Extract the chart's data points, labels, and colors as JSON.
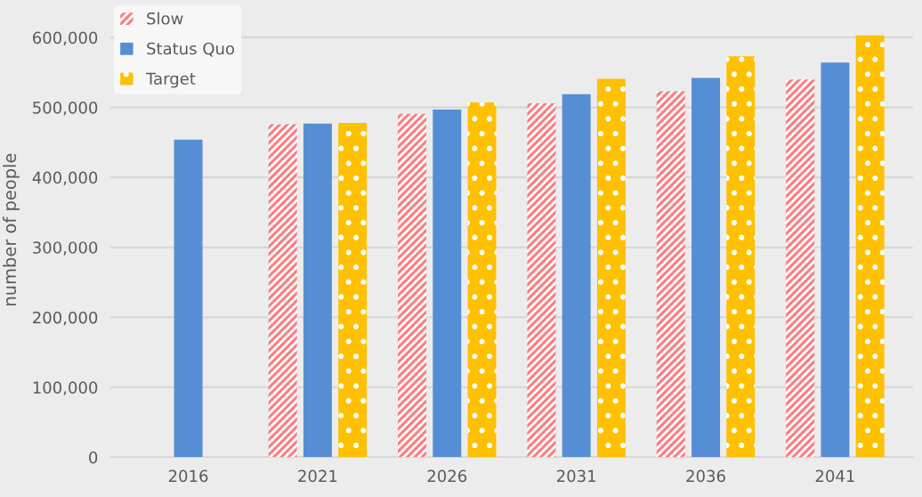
{
  "chart_data": {
    "type": "bar",
    "ylabel": "number of people",
    "categories": [
      "2016",
      "2021",
      "2026",
      "2031",
      "2036",
      "2041"
    ],
    "series": [
      {
        "name": "Slow",
        "color": "#ff7c80",
        "values": [
          null,
          476000,
          491000,
          506000,
          523000,
          540000
        ]
      },
      {
        "name": "Status Quo",
        "color": "#558ed5",
        "values": [
          454000,
          477000,
          497000,
          519000,
          542000,
          564000
        ]
      },
      {
        "name": "Target",
        "color": "#ffc000",
        "values": [
          null,
          478000,
          507000,
          541000,
          573000,
          603000
        ]
      }
    ],
    "ylim": [
      0,
      650000
    ],
    "yticks": [
      {
        "value": 0,
        "label": "0"
      },
      {
        "value": 100000,
        "label": "100,000"
      },
      {
        "value": 200000,
        "label": "200,000"
      },
      {
        "value": 300000,
        "label": "300,000"
      },
      {
        "value": 400000,
        "label": "400,000"
      },
      {
        "value": 500000,
        "label": "500,000"
      },
      {
        "value": 600000,
        "label": "600,000"
      }
    ],
    "grid": "y",
    "legend": "top left"
  }
}
